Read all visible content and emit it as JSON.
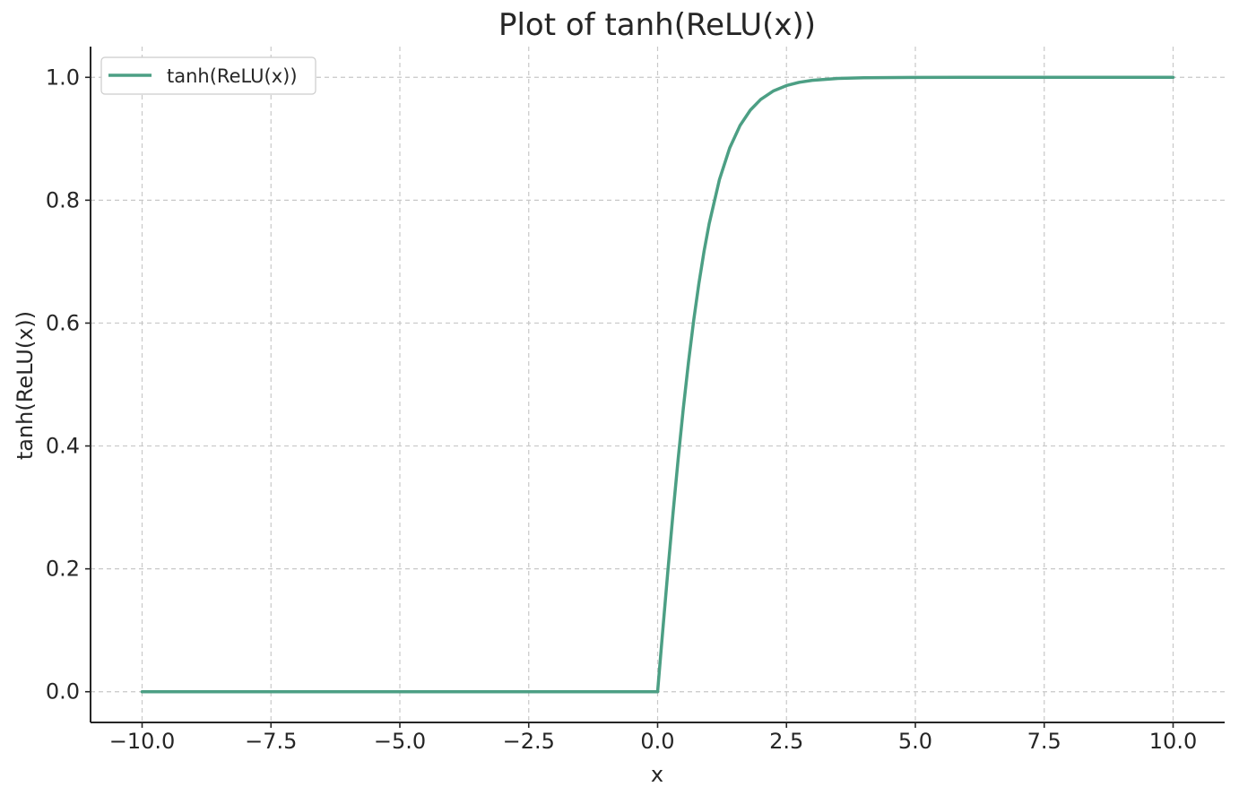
{
  "chart_data": {
    "type": "line",
    "title": "Plot of tanh(ReLU(x))",
    "xlabel": "x",
    "ylabel": "tanh(ReLU(x))",
    "xlim": [
      -11,
      11
    ],
    "ylim": [
      -0.05,
      1.05
    ],
    "xticks": [
      -10.0,
      -7.5,
      -5.0,
      -2.5,
      0.0,
      2.5,
      5.0,
      7.5,
      10.0
    ],
    "xtick_labels": [
      "−10.0",
      "−7.5",
      "−5.0",
      "−2.5",
      "0.0",
      "2.5",
      "5.0",
      "7.5",
      "10.0"
    ],
    "yticks": [
      0.0,
      0.2,
      0.4,
      0.6,
      0.8,
      1.0
    ],
    "ytick_labels": [
      "0.0",
      "0.2",
      "0.4",
      "0.6",
      "0.8",
      "1.0"
    ],
    "grid": true,
    "legend_position": "top-left",
    "series": [
      {
        "name": "tanh(ReLU(x))",
        "color": "#4c9f84",
        "x": [
          -10.0,
          -7.5,
          -5.0,
          -2.5,
          -1.0,
          0.0,
          0.1,
          0.2,
          0.3,
          0.4,
          0.5,
          0.6,
          0.7,
          0.8,
          0.9,
          1.0,
          1.2,
          1.4,
          1.6,
          1.8,
          2.0,
          2.25,
          2.5,
          2.75,
          3.0,
          3.5,
          4.0,
          5.0,
          6.0,
          7.5,
          10.0
        ],
        "y": [
          0.0,
          0.0,
          0.0,
          0.0,
          0.0,
          0.0,
          0.0997,
          0.1974,
          0.2913,
          0.3799,
          0.4621,
          0.537,
          0.6044,
          0.664,
          0.7163,
          0.7616,
          0.8337,
          0.8854,
          0.9217,
          0.9468,
          0.964,
          0.978,
          0.9866,
          0.9919,
          0.9951,
          0.9982,
          0.9993,
          0.9999,
          1.0,
          1.0,
          1.0
        ]
      }
    ]
  }
}
